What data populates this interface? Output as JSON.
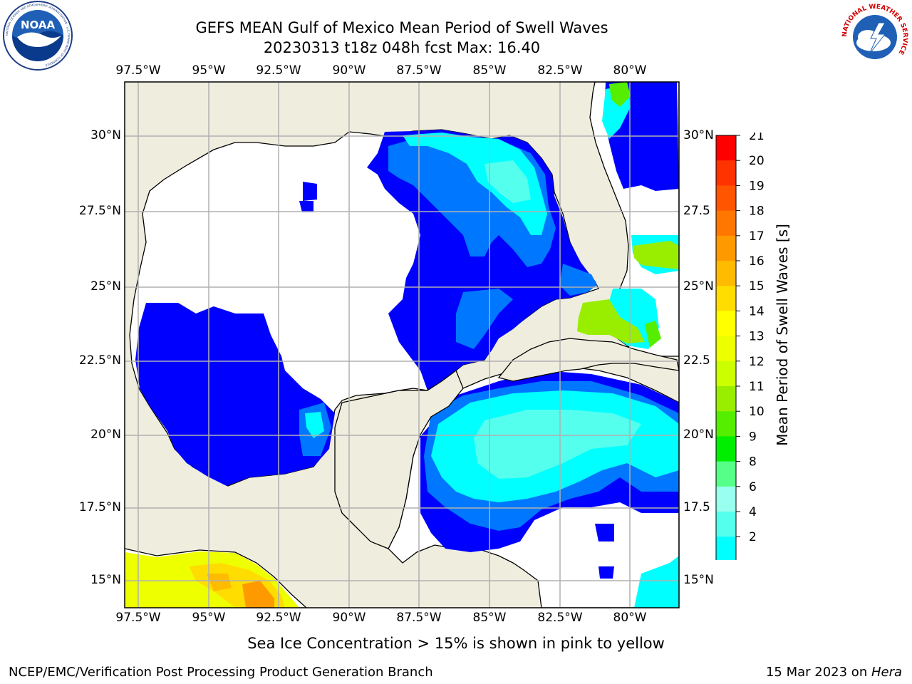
{
  "title": {
    "line1": "GEFS MEAN Gulf of Mexico Mean Period of Swell Waves",
    "line2": "20230313 t18z 048h fcst   Max: 16.40"
  },
  "logos": {
    "left": "NOAA",
    "left_ring_text": "NATIONAL OCEANIC AND ATMOSPHERIC ADMINISTRATION · U.S. DEPARTMENT OF COMMERCE",
    "right_ring_text": "NATIONAL WEATHER SERVICE"
  },
  "map": {
    "lon_labels": [
      "97.5°W",
      "95°W",
      "92.5°W",
      "90°W",
      "87.5°W",
      "85°W",
      "82.5°W",
      "80°W"
    ],
    "lat_labels_left": [
      "30°N",
      "27.5°N",
      "25°N",
      "22.5°N",
      "20°N",
      "17.5°N",
      "15°N"
    ],
    "lat_labels_right": [
      "30°N",
      "27.5",
      "25°N",
      "22.5",
      "20°N",
      "17.5",
      "15°N"
    ],
    "land_color": "#efedde",
    "grid": true
  },
  "colorbar": {
    "label": "Mean Period of Swell Waves [s]",
    "ticks": [
      "21",
      "20",
      "19",
      "18",
      "17",
      "16",
      "15",
      "14",
      "13",
      "12",
      "11",
      "10",
      "9",
      "8",
      "6",
      "4",
      "2"
    ],
    "colors": [
      "#ff0000",
      "#ff3300",
      "#ff5500",
      "#ff7700",
      "#ff9900",
      "#ffbb00",
      "#ffdd00",
      "#ffff00",
      "#eeff00",
      "#ccff00",
      "#99ee00",
      "#55ee00",
      "#00ee00",
      "#55ff88",
      "#99ffee",
      "#55ffee",
      "#00ffff",
      "#0077ff"
    ],
    "extend_color": "#0000ff"
  },
  "caption": "Sea Ice Concentration > 15% is shown in pink to yellow",
  "footer": {
    "credit": "NCEP/EMC/Verification Post Processing Product Generation Branch",
    "date": "15 Mar 2023 on ",
    "machine": "Hera"
  }
}
